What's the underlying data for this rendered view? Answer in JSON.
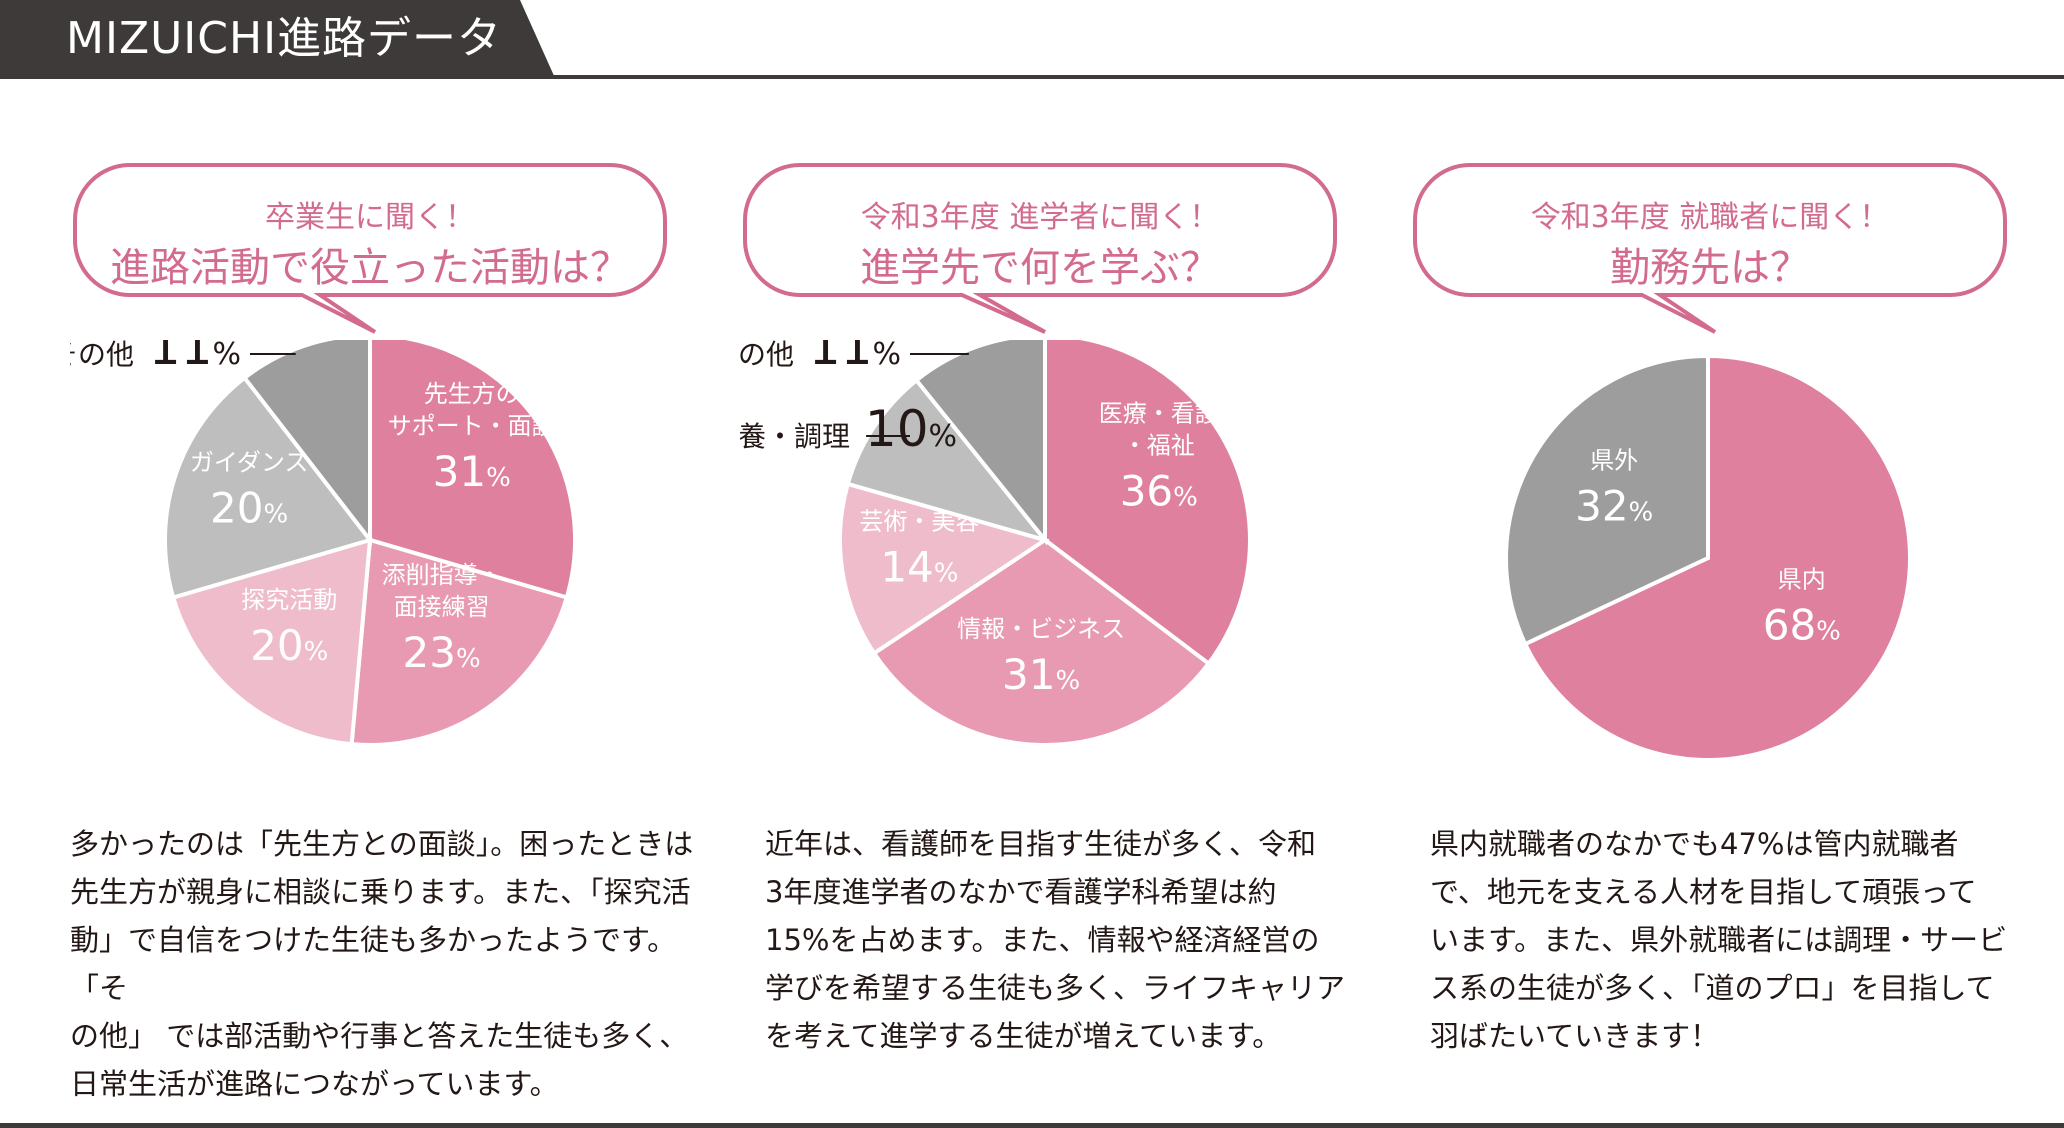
{
  "header": {
    "title": "MIZUICHI進路データ"
  },
  "colors": {
    "pink_dark": "#e0809f",
    "pink_mid": "#e89ab2",
    "pink_light": "#efbccb",
    "gray_light": "#bebebe",
    "gray_mid": "#9d9d9d",
    "accent_text": "#d36b8e"
  },
  "panels": [
    {
      "question_small": "卒業生に聞く！",
      "question_big": "進路活動で役立った活動は？",
      "description": "多かったのは「先生方との面談」。困ったときは\n先生方が親身に相談に乗ります。また、「探究活\n動」で自信をつけた生徒も多かったようです。「そ\nの他」 では部活動や行事と答えた生徒も多く、\n日常生活が進路につながっています。"
    },
    {
      "question_small": "令和3年度 進学者に聞く！",
      "question_big": "進学先で何を学ぶ？",
      "description": "近年は、看護師を目指す生徒が多く、令和\n3年度進学者のなかで看護学科希望は約\n15%を占めます。また、情報や経済経営の\n学びを希望する生徒も多く、ライフキャリア\nを考えて進学する生徒が増えています。"
    },
    {
      "question_small": "令和3年度 就職者に聞く！",
      "question_big": "勤務先は？",
      "description": "県内就職者のなかでも47%は管内就職者\nで、地元を支える人材を目指して頑張って\nいます。また、県外就職者には調理・サービ\nス系の生徒が多く、「道のプロ」を目指して\n羽ばたいていきます！"
    }
  ],
  "chart_data": [
    {
      "type": "pie",
      "unit": "%",
      "slices": [
        {
          "label": [
            "先生方の",
            "サポート・面談"
          ],
          "value": 31,
          "color": "#e0809f",
          "text_color": "#ffffff"
        },
        {
          "label": [
            "添削指導・",
            "面接練習"
          ],
          "value": 23,
          "color": "#e89ab2",
          "text_color": "#ffffff"
        },
        {
          "label": [
            "探究活動"
          ],
          "value": 20,
          "color": "#efbccb",
          "text_color": "#ffffff"
        },
        {
          "label": [
            "ガイダンス"
          ],
          "value": 20,
          "color": "#bebebe",
          "text_color": "#ffffff"
        },
        {
          "label": [
            "その他"
          ],
          "value": 11,
          "color": "#9d9d9d",
          "outside": true
        }
      ]
    },
    {
      "type": "pie",
      "unit": "%",
      "slices": [
        {
          "label": [
            "医療・看護",
            "・福祉"
          ],
          "value": 36,
          "color": "#e0809f",
          "text_color": "#ffffff"
        },
        {
          "label": [
            "情報・ビジネス"
          ],
          "value": 31,
          "color": "#e89ab2",
          "text_color": "#ffffff"
        },
        {
          "label": [
            "芸術・美容"
          ],
          "value": 14,
          "color": "#efbccb",
          "text_color": "#ffffff"
        },
        {
          "label": [
            "栄養・調理"
          ],
          "value": 10,
          "color": "#bebebe",
          "outside": true
        },
        {
          "label": [
            "その他"
          ],
          "value": 11,
          "color": "#9d9d9d",
          "outside": true
        }
      ]
    },
    {
      "type": "pie",
      "unit": "%",
      "slices": [
        {
          "label": [
            "県内"
          ],
          "value": 68,
          "color": "#e0809f",
          "text_color": "#ffffff"
        },
        {
          "label": [
            "県外"
          ],
          "value": 32,
          "color": "#9d9d9d",
          "text_color": "#ffffff"
        }
      ]
    }
  ]
}
